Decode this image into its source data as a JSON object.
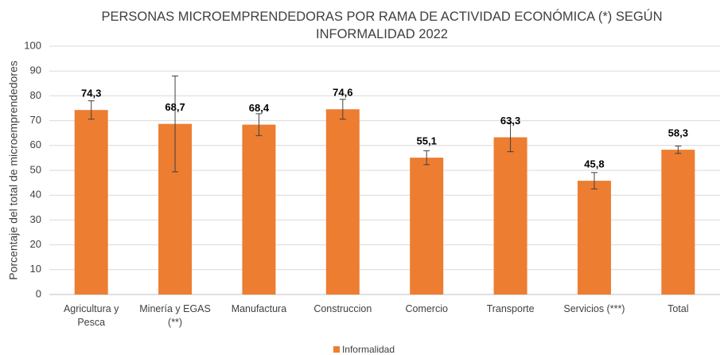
{
  "chart_data": {
    "type": "bar",
    "title": "PERSONAS MICROEMPRENDEDORAS POR RAMA DE ACTIVIDAD ECONÓMICA (*) SEGÚN INFORMALIDAD 2022",
    "ylabel": "Porcentaje del total de microemprendedores",
    "categories": [
      "Agricultura y Pesca",
      "Minería y EGAS (**)",
      "Manufactura",
      "Construccion",
      "Comercio",
      "Transporte",
      "Servicios (***)",
      "Total"
    ],
    "series": [
      {
        "name": "Informalidad",
        "color": "#ed7d31",
        "values": [
          74.3,
          68.7,
          68.4,
          74.6,
          55.1,
          63.3,
          45.8,
          58.3
        ],
        "value_labels": [
          "74,3",
          "68,7",
          "68,4",
          "74,6",
          "55,1",
          "63,3",
          "45,8",
          "58,3"
        ],
        "errors": [
          3.7,
          19.3,
          4.4,
          4.0,
          2.8,
          5.8,
          3.3,
          1.5
        ]
      }
    ],
    "ylim": [
      0,
      100
    ],
    "yticks": [
      0,
      10,
      20,
      30,
      40,
      50,
      60,
      70,
      80,
      90,
      100
    ],
    "grid": true,
    "legend": "bottom"
  }
}
